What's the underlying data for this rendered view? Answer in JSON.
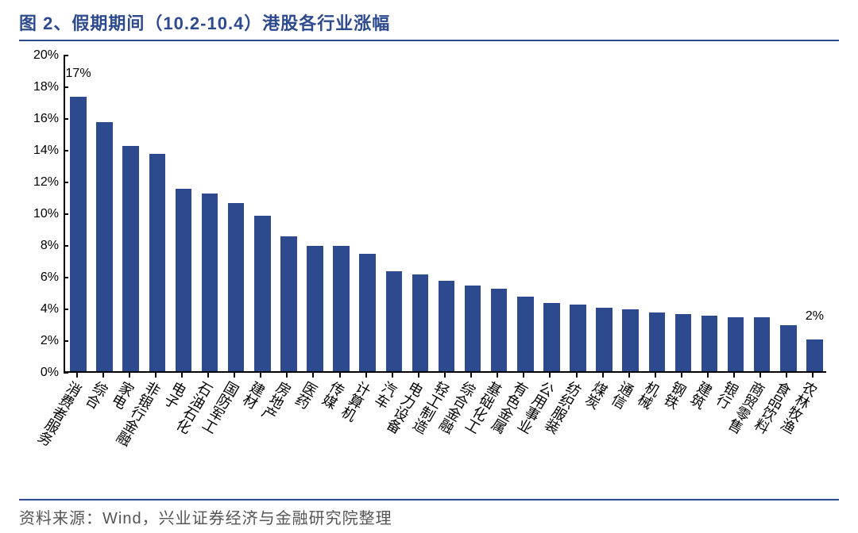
{
  "title": "图 2、假期期间（10.2-10.4）港股各行业涨幅",
  "source": "资料来源：Wind，兴业证券经济与金融研究院整理",
  "chart": {
    "type": "bar",
    "ymin": 0,
    "ymax": 20,
    "ytick_step": 2,
    "ytick_suffix": "%",
    "axis_color": "#000000",
    "title_color": "#2e4a8f",
    "bar_color": "#2e4a8f",
    "background_color": "#ffffff",
    "bar_width_ratio": 0.62,
    "title_fontsize": 22,
    "ylabel_fontsize": 16,
    "xlabel_fontsize": 18,
    "annotation_fontsize": 16,
    "categories": [
      "消费者服务",
      "综合",
      "家电",
      "非银行金融",
      "电子",
      "石油石化",
      "国防军工",
      "建材",
      "房地产",
      "医药",
      "传媒",
      "计算机",
      "汽车",
      "电力设备",
      "轻工制造",
      "综合金融",
      "基础化工",
      "有色金属",
      "公用事业",
      "纺织服装",
      "煤炭",
      "通信",
      "机械",
      "钢铁",
      "建筑",
      "银行",
      "商贸零售",
      "食品饮料",
      "农林牧渔"
    ],
    "values": [
      17.3,
      15.7,
      14.2,
      13.7,
      11.5,
      11.2,
      10.6,
      9.8,
      8.5,
      7.9,
      7.9,
      7.4,
      6.3,
      6.1,
      5.7,
      5.4,
      5.2,
      4.7,
      4.3,
      4.2,
      4.0,
      3.9,
      3.7,
      3.6,
      3.5,
      3.4,
      3.4,
      2.9,
      2.0
    ],
    "annotations": [
      {
        "index": 0,
        "text": "17%"
      },
      {
        "index": 28,
        "text": "2%"
      }
    ]
  }
}
